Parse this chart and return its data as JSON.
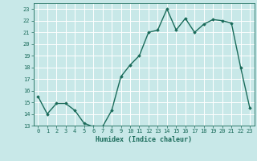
{
  "x": [
    0,
    1,
    2,
    3,
    4,
    5,
    6,
    7,
    8,
    9,
    10,
    11,
    12,
    13,
    14,
    15,
    16,
    17,
    18,
    19,
    20,
    21,
    22,
    23
  ],
  "y": [
    15.5,
    14.0,
    14.9,
    14.9,
    14.3,
    13.2,
    12.9,
    12.9,
    14.3,
    17.2,
    18.2,
    19.0,
    21.0,
    21.2,
    23.0,
    21.2,
    22.2,
    21.0,
    21.7,
    22.1,
    22.0,
    21.8,
    18.0,
    14.5
  ],
  "xlabel": "Humidex (Indice chaleur)",
  "line_color": "#1a6b5a",
  "marker": "D",
  "marker_size": 1.8,
  "line_width": 1.0,
  "bg_color": "#c8e8e8",
  "grid_color": "#ffffff",
  "tick_color": "#1a6b5a",
  "label_color": "#1a6b5a",
  "ylim": [
    13,
    23.5
  ],
  "xlim": [
    -0.5,
    23.5
  ],
  "yticks": [
    13,
    14,
    15,
    16,
    17,
    18,
    19,
    20,
    21,
    22,
    23
  ],
  "xticks": [
    0,
    1,
    2,
    3,
    4,
    5,
    6,
    7,
    8,
    9,
    10,
    11,
    12,
    13,
    14,
    15,
    16,
    17,
    18,
    19,
    20,
    21,
    22,
    23
  ],
  "tick_fontsize": 5.0,
  "xlabel_fontsize": 6.0
}
